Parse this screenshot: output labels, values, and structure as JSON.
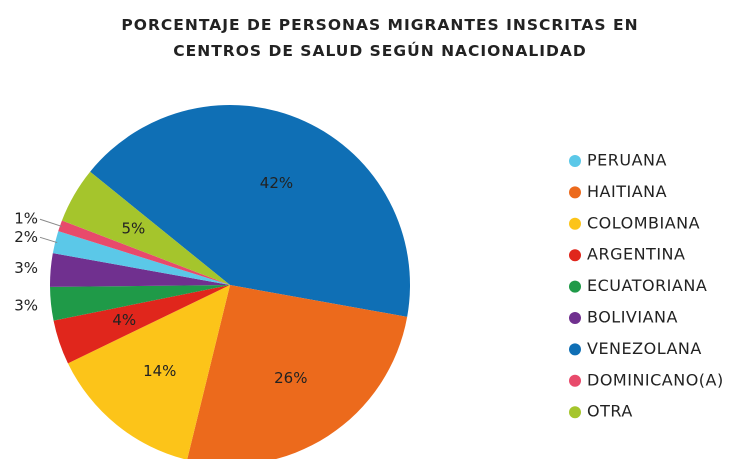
{
  "chart_data": {
    "type": "pie",
    "title": "PORCENTAJE DE PERSONAS MIGRANTES INSCRITAS EN CENTROS DE SALUD SEGÚN NACIONALIDAD",
    "categories": [
      "PERUANA",
      "HAITIANA",
      "COLOMBIANA",
      "ARGENTINA",
      "ECUATORIANA",
      "BOLIVIANA",
      "VENEZOLANA",
      "DOMINICANO(A)",
      "OTRA"
    ],
    "values": [
      2,
      26,
      14,
      4,
      3,
      3,
      42,
      1,
      5
    ],
    "value_labels": [
      "2%",
      "26%",
      "14%",
      "4%",
      "3%",
      "3%",
      "42%",
      "1%",
      "5%"
    ],
    "colors": [
      "#5bc8e8",
      "#ec6a1c",
      "#fcc419",
      "#e0261c",
      "#1f9a48",
      "#70308f",
      "#0f6fb5",
      "#e84a6b",
      "#a5c52c"
    ],
    "legend": "right"
  }
}
